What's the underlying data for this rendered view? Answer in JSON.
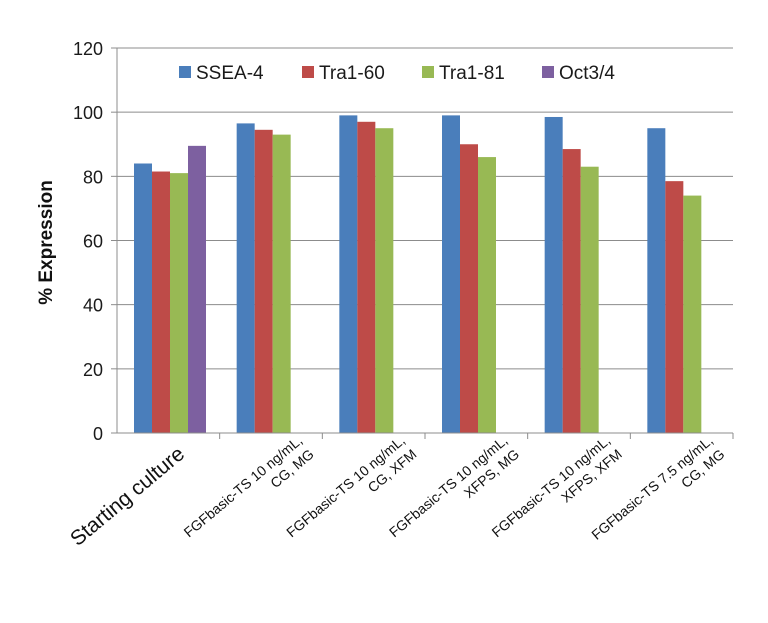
{
  "chart_data": {
    "type": "bar",
    "title": "",
    "xlabel": "",
    "ylabel": "% Expression",
    "ylim": [
      0,
      120
    ],
    "yticks": [
      0,
      20,
      40,
      60,
      80,
      100,
      120
    ],
    "grid": true,
    "legend_position": "top",
    "categories": [
      [
        "Starting culture"
      ],
      [
        "FGFbasic-TS 10 ng/mL,",
        "CG, MG"
      ],
      [
        "FGFbasic-TS 10 ng/mL,",
        "CG, XFM"
      ],
      [
        "FGFbasic-TS 10 ng/mL,",
        "XFPS, MG"
      ],
      [
        "FGFbasic-TS 10 ng/mL,",
        "XFPS, XFM"
      ],
      [
        "FGFbasic-TS 7.5 ng/mL,",
        "CG, MG"
      ]
    ],
    "series": [
      {
        "name": "SSEA-4",
        "color": "#4a7ebb",
        "values": [
          84,
          96.5,
          99,
          99,
          98.5,
          95
        ]
      },
      {
        "name": "Tra1-60",
        "color": "#be4b48",
        "values": [
          81.5,
          94.5,
          97,
          90,
          88.5,
          78.5
        ]
      },
      {
        "name": "Tra1-81",
        "color": "#98b954",
        "values": [
          81,
          93,
          95,
          86,
          83,
          74
        ]
      },
      {
        "name": "Oct3/4",
        "color": "#7d60a0",
        "values": [
          89.5,
          null,
          null,
          null,
          null,
          null
        ]
      }
    ]
  }
}
